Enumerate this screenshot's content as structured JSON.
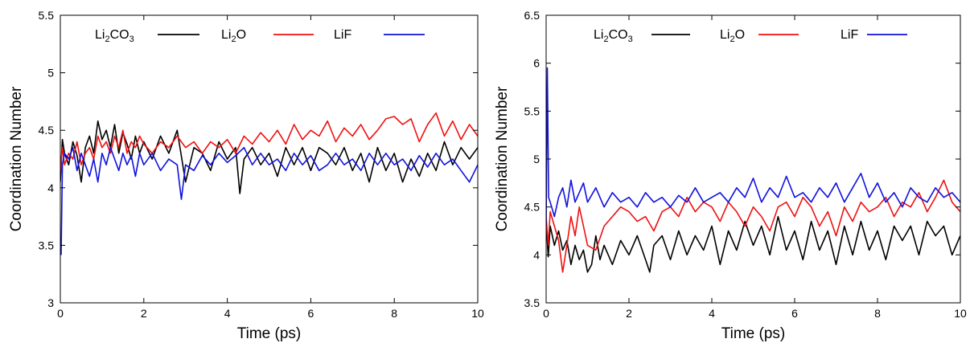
{
  "chart_data": [
    {
      "type": "line",
      "title": "",
      "xlabel": "Time (ps)",
      "ylabel": "Coordination Number",
      "xlim": [
        0,
        10
      ],
      "ylim": [
        3,
        5.5
      ],
      "xticks": [
        0,
        2,
        4,
        6,
        8,
        10
      ],
      "xtick_labels": [
        "0",
        "2",
        "4",
        "6",
        "8",
        "10"
      ],
      "yticks": [
        3,
        3.5,
        4,
        4.5,
        5,
        5.5
      ],
      "ytick_labels": [
        "3",
        "3.5",
        "4",
        "4.5",
        "5",
        "5.5"
      ],
      "grid": false,
      "legend_position": "top",
      "series": [
        {
          "name": "Li2CO3",
          "legend": {
            "base": "Li",
            "sub1": "2",
            "mid": "CO",
            "sub2": "3"
          },
          "color": "#000000",
          "x": [
            0,
            0.05,
            0.1,
            0.2,
            0.3,
            0.4,
            0.5,
            0.6,
            0.7,
            0.8,
            0.9,
            1.0,
            1.1,
            1.2,
            1.3,
            1.4,
            1.5,
            1.6,
            1.7,
            1.8,
            1.9,
            2.0,
            2.2,
            2.4,
            2.6,
            2.8,
            3.0,
            3.2,
            3.4,
            3.6,
            3.8,
            4.0,
            4.2,
            4.3,
            4.4,
            4.6,
            4.8,
            5.0,
            5.2,
            5.4,
            5.6,
            5.8,
            6.0,
            6.2,
            6.4,
            6.6,
            6.8,
            7.0,
            7.2,
            7.4,
            7.6,
            7.8,
            8.0,
            8.2,
            8.4,
            8.6,
            8.8,
            9.0,
            9.2,
            9.4,
            9.6,
            9.8,
            10.0
          ],
          "y": [
            4.05,
            4.42,
            4.3,
            4.2,
            4.4,
            4.28,
            4.05,
            4.35,
            4.45,
            4.3,
            4.58,
            4.42,
            4.5,
            4.35,
            4.55,
            4.3,
            4.48,
            4.38,
            4.25,
            4.45,
            4.3,
            4.4,
            4.25,
            4.45,
            4.3,
            4.5,
            4.05,
            4.35,
            4.3,
            4.15,
            4.4,
            4.25,
            4.35,
            3.95,
            4.25,
            4.35,
            4.2,
            4.3,
            4.1,
            4.35,
            4.2,
            4.35,
            4.15,
            4.35,
            4.3,
            4.2,
            4.35,
            4.15,
            4.3,
            4.05,
            4.35,
            4.15,
            4.3,
            4.05,
            4.25,
            4.1,
            4.3,
            4.15,
            4.4,
            4.2,
            4.35,
            4.25,
            4.35
          ]
        },
        {
          "name": "Li2O",
          "legend": {
            "base": "Li",
            "sub1": "2",
            "mid": "O",
            "sub2": ""
          },
          "color": "#ee1111",
          "x": [
            0,
            0.05,
            0.1,
            0.2,
            0.3,
            0.4,
            0.5,
            0.6,
            0.7,
            0.8,
            0.9,
            1.0,
            1.1,
            1.2,
            1.3,
            1.4,
            1.5,
            1.6,
            1.7,
            1.8,
            1.9,
            2.0,
            2.2,
            2.4,
            2.6,
            2.8,
            3.0,
            3.2,
            3.4,
            3.6,
            3.8,
            4.0,
            4.2,
            4.4,
            4.6,
            4.8,
            5.0,
            5.2,
            5.4,
            5.6,
            5.8,
            6.0,
            6.2,
            6.4,
            6.6,
            6.8,
            7.0,
            7.2,
            7.4,
            7.6,
            7.8,
            8.0,
            8.2,
            8.4,
            8.6,
            8.8,
            9.0,
            9.2,
            9.4,
            9.6,
            9.8,
            10.0
          ],
          "y": [
            4.15,
            4.35,
            4.2,
            4.3,
            4.25,
            4.4,
            4.2,
            4.3,
            4.35,
            4.25,
            4.45,
            4.35,
            4.4,
            4.3,
            4.45,
            4.35,
            4.5,
            4.3,
            4.4,
            4.35,
            4.45,
            4.38,
            4.3,
            4.4,
            4.35,
            4.45,
            4.35,
            4.4,
            4.3,
            4.4,
            4.35,
            4.42,
            4.3,
            4.45,
            4.38,
            4.48,
            4.4,
            4.5,
            4.38,
            4.55,
            4.42,
            4.5,
            4.45,
            4.58,
            4.4,
            4.52,
            4.45,
            4.55,
            4.42,
            4.5,
            4.6,
            4.62,
            4.55,
            4.6,
            4.4,
            4.55,
            4.65,
            4.45,
            4.58,
            4.42,
            4.55,
            4.45
          ]
        },
        {
          "name": "LiF",
          "legend": {
            "base": "LiF",
            "sub1": "",
            "mid": "",
            "sub2": ""
          },
          "color": "#1111dd",
          "x": [
            0,
            0.02,
            0.05,
            0.1,
            0.2,
            0.3,
            0.4,
            0.5,
            0.6,
            0.7,
            0.8,
            0.9,
            1.0,
            1.1,
            1.2,
            1.3,
            1.4,
            1.5,
            1.6,
            1.7,
            1.8,
            1.9,
            2.0,
            2.2,
            2.4,
            2.6,
            2.8,
            2.9,
            3.0,
            3.2,
            3.4,
            3.6,
            3.8,
            4.0,
            4.2,
            4.4,
            4.6,
            4.8,
            5.0,
            5.2,
            5.4,
            5.6,
            5.8,
            6.0,
            6.2,
            6.4,
            6.6,
            6.8,
            7.0,
            7.2,
            7.4,
            7.6,
            7.8,
            8.0,
            8.2,
            8.4,
            8.6,
            8.8,
            9.0,
            9.2,
            9.4,
            9.6,
            9.8,
            10.0
          ],
          "y": [
            3.5,
            3.42,
            4.2,
            4.3,
            4.25,
            4.35,
            4.15,
            4.3,
            4.2,
            4.1,
            4.25,
            4.05,
            4.3,
            4.2,
            4.35,
            4.25,
            4.15,
            4.3,
            4.2,
            4.28,
            4.1,
            4.3,
            4.2,
            4.3,
            4.15,
            4.25,
            4.2,
            3.9,
            4.2,
            4.15,
            4.28,
            4.2,
            4.3,
            4.22,
            4.28,
            4.35,
            4.2,
            4.3,
            4.2,
            4.25,
            4.15,
            4.3,
            4.2,
            4.28,
            4.15,
            4.2,
            4.3,
            4.2,
            4.25,
            4.15,
            4.3,
            4.2,
            4.3,
            4.2,
            4.25,
            4.15,
            4.28,
            4.18,
            4.3,
            4.2,
            4.25,
            4.15,
            4.05,
            4.2
          ]
        }
      ]
    },
    {
      "type": "line",
      "title": "",
      "xlabel": "Time (ps)",
      "ylabel": "Coordination Number",
      "xlim": [
        0,
        10
      ],
      "ylim": [
        3.5,
        6.5
      ],
      "xticks": [
        0,
        2,
        4,
        6,
        8,
        10
      ],
      "xtick_labels": [
        "0",
        "2",
        "4",
        "6",
        "8",
        "10"
      ],
      "yticks": [
        3.5,
        4,
        4.5,
        5,
        5.5,
        6,
        6.5
      ],
      "ytick_labels": [
        "3.5",
        "4",
        "4.5",
        "5",
        "5.5",
        "6",
        "6.5"
      ],
      "grid": false,
      "legend_position": "top",
      "series": [
        {
          "name": "Li2CO3",
          "legend": {
            "base": "Li",
            "sub1": "2",
            "mid": "CO",
            "sub2": "3"
          },
          "color": "#000000",
          "x": [
            0,
            0.05,
            0.1,
            0.2,
            0.3,
            0.4,
            0.5,
            0.6,
            0.7,
            0.8,
            0.9,
            1.0,
            1.1,
            1.2,
            1.3,
            1.4,
            1.6,
            1.8,
            2.0,
            2.2,
            2.4,
            2.5,
            2.6,
            2.8,
            3.0,
            3.2,
            3.4,
            3.6,
            3.8,
            4.0,
            4.2,
            4.4,
            4.6,
            4.8,
            5.0,
            5.2,
            5.4,
            5.6,
            5.8,
            6.0,
            6.2,
            6.4,
            6.6,
            6.8,
            7.0,
            7.2,
            7.4,
            7.6,
            7.8,
            8.0,
            8.2,
            8.4,
            8.6,
            8.8,
            9.0,
            9.2,
            9.4,
            9.6,
            9.8,
            10.0
          ],
          "y": [
            4.35,
            3.98,
            4.3,
            4.1,
            4.25,
            4.05,
            4.15,
            3.9,
            4.1,
            3.95,
            4.05,
            3.82,
            3.9,
            4.2,
            3.95,
            4.1,
            3.9,
            4.15,
            4.0,
            4.2,
            3.95,
            3.82,
            4.1,
            4.2,
            3.95,
            4.25,
            4.0,
            4.2,
            4.05,
            4.3,
            3.9,
            4.25,
            4.05,
            4.35,
            4.1,
            4.3,
            4.0,
            4.4,
            4.05,
            4.25,
            3.95,
            4.35,
            4.05,
            4.25,
            3.9,
            4.3,
            4.0,
            4.35,
            4.05,
            4.25,
            3.95,
            4.3,
            4.15,
            4.3,
            4.0,
            4.35,
            4.2,
            4.3,
            4.0,
            4.2
          ]
        },
        {
          "name": "Li2O",
          "legend": {
            "base": "Li",
            "sub1": "2",
            "mid": "O",
            "sub2": ""
          },
          "color": "#ee1111",
          "x": [
            0,
            0.05,
            0.1,
            0.2,
            0.3,
            0.4,
            0.5,
            0.6,
            0.7,
            0.8,
            0.9,
            1.0,
            1.2,
            1.4,
            1.6,
            1.8,
            2.0,
            2.2,
            2.4,
            2.6,
            2.8,
            3.0,
            3.2,
            3.4,
            3.6,
            3.8,
            4.0,
            4.2,
            4.4,
            4.6,
            4.8,
            5.0,
            5.2,
            5.4,
            5.6,
            5.8,
            6.0,
            6.2,
            6.4,
            6.6,
            6.8,
            7.0,
            7.2,
            7.4,
            7.6,
            7.8,
            8.0,
            8.2,
            8.4,
            8.6,
            8.8,
            9.0,
            9.2,
            9.4,
            9.6,
            9.8,
            10.0
          ],
          "y": [
            4.4,
            4.1,
            4.45,
            4.3,
            4.15,
            3.82,
            4.1,
            4.4,
            4.2,
            4.5,
            4.3,
            4.1,
            4.05,
            4.3,
            4.4,
            4.5,
            4.45,
            4.35,
            4.4,
            4.25,
            4.45,
            4.5,
            4.4,
            4.6,
            4.45,
            4.55,
            4.5,
            4.35,
            4.55,
            4.45,
            4.3,
            4.5,
            4.4,
            4.25,
            4.5,
            4.55,
            4.4,
            4.6,
            4.5,
            4.3,
            4.45,
            4.2,
            4.5,
            4.35,
            4.55,
            4.45,
            4.5,
            4.6,
            4.4,
            4.55,
            4.5,
            4.65,
            4.45,
            4.6,
            4.78,
            4.55,
            4.45
          ]
        },
        {
          "name": "LiF",
          "legend": {
            "base": "LiF",
            "sub1": "",
            "mid": "",
            "sub2": ""
          },
          "color": "#1111dd",
          "x": [
            0,
            0.03,
            0.06,
            0.1,
            0.2,
            0.3,
            0.4,
            0.5,
            0.6,
            0.7,
            0.8,
            0.9,
            1.0,
            1.2,
            1.4,
            1.6,
            1.8,
            2.0,
            2.2,
            2.4,
            2.6,
            2.8,
            3.0,
            3.2,
            3.4,
            3.6,
            3.8,
            4.0,
            4.2,
            4.4,
            4.6,
            4.8,
            5.0,
            5.2,
            5.4,
            5.6,
            5.8,
            6.0,
            6.2,
            6.4,
            6.6,
            6.8,
            7.0,
            7.2,
            7.4,
            7.6,
            7.8,
            8.0,
            8.2,
            8.4,
            8.6,
            8.8,
            9.0,
            9.2,
            9.4,
            9.6,
            9.8,
            10.0
          ],
          "y": [
            4.3,
            5.95,
            4.6,
            4.55,
            4.4,
            4.6,
            4.7,
            4.5,
            4.78,
            4.55,
            4.65,
            4.75,
            4.55,
            4.7,
            4.5,
            4.65,
            4.55,
            4.6,
            4.5,
            4.65,
            4.55,
            4.6,
            4.5,
            4.62,
            4.55,
            4.7,
            4.55,
            4.6,
            4.65,
            4.55,
            4.7,
            4.6,
            4.8,
            4.55,
            4.7,
            4.6,
            4.82,
            4.6,
            4.65,
            4.55,
            4.7,
            4.6,
            4.75,
            4.55,
            4.7,
            4.85,
            4.6,
            4.75,
            4.55,
            4.65,
            4.5,
            4.7,
            4.6,
            4.55,
            4.7,
            4.6,
            4.65,
            4.55
          ]
        }
      ]
    }
  ]
}
